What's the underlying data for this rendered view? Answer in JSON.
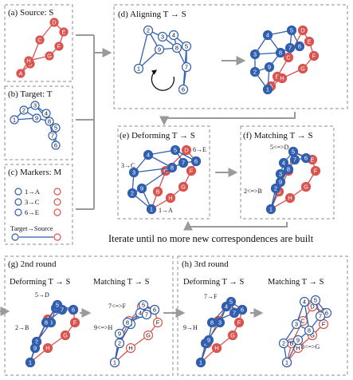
{
  "colors": {
    "blue": "#2f5fae",
    "blue_fill": "#3d6fc2",
    "red": "#d9534f",
    "red_fill": "#e26e6a",
    "panel_border": "#8c8c8c",
    "arrow": "#9a9a9a"
  },
  "panels": {
    "a": {
      "label": "(a)  Source: S"
    },
    "b": {
      "label": "(b)  Target: T"
    },
    "c": {
      "label": "(c)  Markers: M",
      "rows": [
        "1→A",
        "3→C",
        "6→E"
      ],
      "legend": "Target→Source"
    },
    "d": {
      "label": "(d)   Aligning T → S"
    },
    "e": {
      "label": "(e)  Deforming T → S",
      "annotations": [
        "6→E",
        "3→C",
        "1→A"
      ]
    },
    "f": {
      "label": "(f)  Matching T → S",
      "annotations": [
        "5<=>D",
        "2<=>B"
      ]
    },
    "g": {
      "label": "(g)  2nd round",
      "left": "Deforming T → S",
      "right": "Matching T → S",
      "annotations": [
        "5→D",
        "2→B",
        "7<=>F",
        "9<=>H"
      ]
    },
    "h": {
      "label": "(h)  3rd round",
      "left": "Deforming T → S",
      "right": "Matching T → S",
      "annotations": [
        "7→F",
        "9→H",
        "8<=>G"
      ]
    }
  },
  "caption": "Iterate until no more new correspondences are built"
}
